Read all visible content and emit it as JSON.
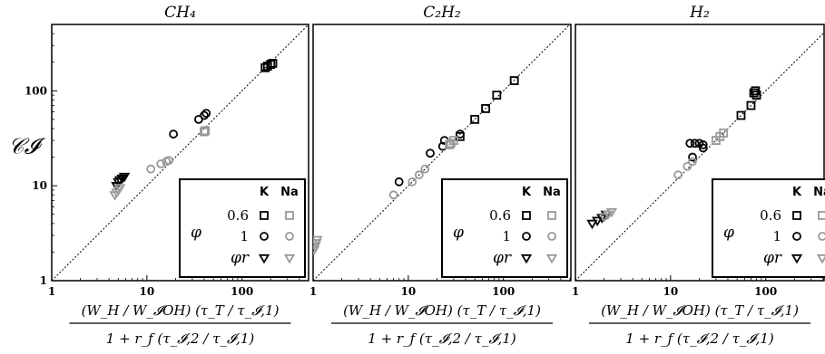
{
  "colors": {
    "K": "#000000",
    "Na": "#999999",
    "frame": "#000000",
    "ref_line": "#000000"
  },
  "y_axis_label": "𝒞𝓘",
  "x_axis_label": {
    "numerator": "(W_H / W_𝓘OH) (τ_T / τ_𝓘,1)",
    "denominator": "1 + r_f (τ_𝓘,2 / τ_𝓘,1)"
  },
  "legend": {
    "columns": [
      "K",
      "Na"
    ],
    "phi_symbol": "φ",
    "rows": [
      {
        "label": "0.6",
        "marker": "square-icon"
      },
      {
        "label": "1",
        "marker": "circle-icon"
      },
      {
        "label": "φr",
        "marker": "triangle-down-icon"
      }
    ]
  },
  "chart_data": [
    {
      "type": "scatter",
      "title": "CH₄",
      "x_scale": "log",
      "y_scale": "log",
      "xlim": [
        1,
        500
      ],
      "ylim": [
        1,
        500
      ],
      "x_ticks": [
        "1",
        "10",
        "100"
      ],
      "y_ticks": [
        "1",
        "10",
        "100"
      ],
      "reference_line": "y = x",
      "legend_position": "bottom-right",
      "series": [
        {
          "group": "K",
          "phi": "0.6",
          "marker": "square",
          "points": [
            [
              175,
              175
            ],
            [
              185,
              182
            ],
            [
              200,
              190
            ],
            [
              210,
              195
            ]
          ]
        },
        {
          "group": "K",
          "phi": "1",
          "marker": "circle",
          "points": [
            [
              19,
              35
            ],
            [
              35,
              50
            ],
            [
              40,
              55
            ],
            [
              42,
              58
            ]
          ]
        },
        {
          "group": "K",
          "phi": "φr",
          "marker": "triangle-down",
          "points": [
            [
              4.8,
              10
            ],
            [
              5.0,
              11
            ],
            [
              5.2,
              11.5
            ],
            [
              5.5,
              12
            ],
            [
              5.8,
              12.5
            ]
          ]
        },
        {
          "group": "Na",
          "phi": "0.6",
          "marker": "square",
          "points": [
            [
              40,
              37
            ],
            [
              41,
              38
            ]
          ]
        },
        {
          "group": "Na",
          "phi": "1",
          "marker": "circle",
          "points": [
            [
              11,
              15
            ],
            [
              14,
              17
            ],
            [
              16,
              18
            ],
            [
              17,
              18.5
            ]
          ]
        },
        {
          "group": "Na",
          "phi": "φr",
          "marker": "triangle-down",
          "points": [
            [
              4.6,
              8
            ],
            [
              4.8,
              8.5
            ],
            [
              5.0,
              9
            ],
            [
              5.2,
              9.5
            ]
          ]
        }
      ]
    },
    {
      "type": "scatter",
      "title": "C₂H₂",
      "x_scale": "log",
      "y_scale": "log",
      "xlim": [
        1,
        500
      ],
      "ylim": [
        1,
        500
      ],
      "x_ticks": [
        "1",
        "10",
        "100"
      ],
      "y_ticks": [],
      "reference_line": "y = x",
      "legend_position": "bottom-right",
      "series": [
        {
          "group": "K",
          "phi": "0.6",
          "marker": "square",
          "points": [
            [
              35,
              33
            ],
            [
              50,
              50
            ],
            [
              65,
              65
            ],
            [
              85,
              90
            ],
            [
              130,
              128
            ]
          ]
        },
        {
          "group": "K",
          "phi": "1",
          "marker": "circle",
          "points": [
            [
              8,
              11
            ],
            [
              17,
              22
            ],
            [
              23,
              26
            ],
            [
              24,
              30
            ],
            [
              35,
              35
            ]
          ]
        },
        {
          "group": "Na",
          "phi": "0.6",
          "marker": "square",
          "points": [
            [
              27,
              27
            ],
            [
              28,
              28
            ],
            [
              30,
              30
            ]
          ]
        },
        {
          "group": "Na",
          "phi": "1",
          "marker": "circle",
          "points": [
            [
              7,
              8
            ],
            [
              11,
              11
            ],
            [
              13,
              13
            ],
            [
              15,
              15
            ]
          ]
        },
        {
          "group": "Na",
          "phi": "φr",
          "marker": "triangle-down",
          "points": [
            [
              1.02,
              2.1
            ],
            [
              1.05,
              2.3
            ],
            [
              1.08,
              2.5
            ],
            [
              1.1,
              2.7
            ]
          ]
        }
      ]
    },
    {
      "type": "scatter",
      "title": "H₂",
      "x_scale": "log",
      "y_scale": "log",
      "xlim": [
        1,
        500
      ],
      "ylim": [
        1,
        500
      ],
      "x_ticks": [
        "1",
        "10",
        "100"
      ],
      "y_ticks": [],
      "reference_line": "y = x",
      "legend_position": "bottom-right",
      "series": [
        {
          "group": "K",
          "phi": "0.6",
          "marker": "square",
          "points": [
            [
              55,
              55
            ],
            [
              70,
              70
            ],
            [
              75,
              95
            ],
            [
              78,
              100
            ],
            [
              80,
              90
            ]
          ]
        },
        {
          "group": "K",
          "phi": "1",
          "marker": "circle",
          "points": [
            [
              16,
              28
            ],
            [
              18,
              28
            ],
            [
              20,
              28
            ],
            [
              22,
              27
            ],
            [
              17,
              20
            ],
            [
              22,
              25
            ]
          ]
        },
        {
          "group": "K",
          "phi": "φr",
          "marker": "triangle-down",
          "points": [
            [
              1.5,
              4
            ],
            [
              1.7,
              4.3
            ],
            [
              1.9,
              4.6
            ],
            [
              2.1,
              5
            ]
          ]
        },
        {
          "group": "Na",
          "phi": "0.6",
          "marker": "square",
          "points": [
            [
              30,
              30
            ],
            [
              33,
              33
            ],
            [
              36,
              36
            ]
          ]
        },
        {
          "group": "Na",
          "phi": "1",
          "marker": "circle",
          "points": [
            [
              12,
              13
            ],
            [
              15,
              16
            ],
            [
              17,
              18
            ]
          ]
        },
        {
          "group": "Na",
          "phi": "φr",
          "marker": "triangle-down",
          "points": [
            [
              2.0,
              4.7
            ],
            [
              2.2,
              5.0
            ],
            [
              2.4,
              5.3
            ]
          ]
        }
      ]
    }
  ]
}
